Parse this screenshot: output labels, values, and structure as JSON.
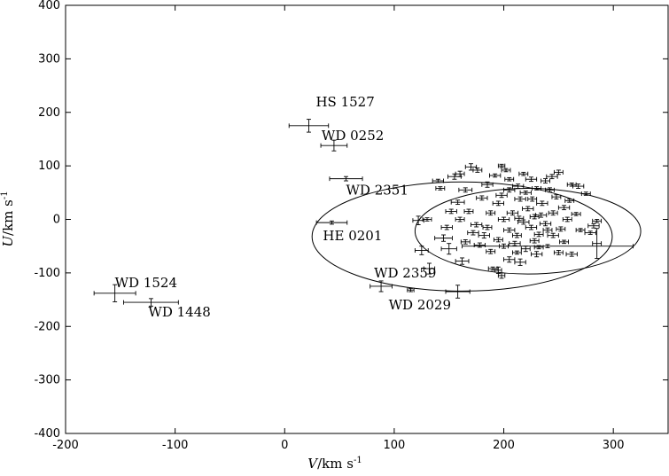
{
  "chart_data": {
    "type": "scatter",
    "xlabel": {
      "italic": "V",
      "unit": "/km s",
      "exp": "-1"
    },
    "ylabel": {
      "italic": "U",
      "unit": "/km s",
      "exp": "-1"
    },
    "xlim": [
      -200,
      350
    ],
    "ylim": [
      -400,
      400
    ],
    "x_ticks": [
      "-200",
      "-100",
      "0",
      "100",
      "200",
      "300"
    ],
    "y_ticks": [
      "-400",
      "-300",
      "-200",
      "-100",
      "0",
      "100",
      "200",
      "300",
      "400"
    ],
    "grid": false,
    "ellipses": [
      {
        "center": [
          162,
          -32
        ],
        "semi_axes": [
          137,
          102
        ]
      },
      {
        "center": [
          222,
          -22
        ],
        "semi_axes": [
          103,
          80
        ]
      }
    ],
    "labeled_points": [
      {
        "name": "HS 1527",
        "v": 22,
        "u": 175,
        "v_err": 18,
        "u_err": 12
      },
      {
        "name": "WD 0252",
        "v": 45,
        "u": 138,
        "v_err": 12,
        "u_err": 10
      },
      {
        "name": "WD 2351",
        "v": 56,
        "u": 76,
        "v_err": 15,
        "u_err": 4
      },
      {
        "name": "HE 0201",
        "v": 43,
        "u": -6,
        "v_err": 14,
        "u_err": 3
      },
      {
        "name": "WD 2359",
        "v": 88,
        "u": -125,
        "v_err": 10,
        "u_err": 10
      },
      {
        "name": "WD 2029",
        "v": 158,
        "u": -135,
        "v_err": 11,
        "u_err": 12
      },
      {
        "name": "WD 1524",
        "v": -155,
        "u": -138,
        "v_err": 19,
        "u_err": 16
      },
      {
        "name": "WD 1448",
        "v": -122,
        "u": -155,
        "v_err": 25,
        "u_err": 7
      }
    ],
    "other_points": [
      {
        "v": 132,
        "u": -92,
        "v_err": 5,
        "u_err": 10
      },
      {
        "v": 125,
        "u": -58,
        "v_err": 6,
        "u_err": 8
      },
      {
        "v": 115,
        "u": -132,
        "v_err": 3,
        "u_err": 3
      },
      {
        "v": 122,
        "u": -2,
        "v_err": 5,
        "u_err": 8
      },
      {
        "v": 130,
        "u": 0,
        "v_err": 4,
        "u_err": 3
      },
      {
        "v": 145,
        "u": -35,
        "v_err": 8,
        "u_err": 6
      },
      {
        "v": 150,
        "u": -55,
        "v_err": 7,
        "u_err": 10
      },
      {
        "v": 162,
        "u": -78,
        "v_err": 6,
        "u_err": 6
      },
      {
        "v": 140,
        "u": 72,
        "v_err": 5,
        "u_err": 3
      },
      {
        "v": 142,
        "u": 58,
        "v_err": 4,
        "u_err": 3
      },
      {
        "v": 155,
        "u": 80,
        "v_err": 6,
        "u_err": 5
      },
      {
        "v": 160,
        "u": 85,
        "v_err": 4,
        "u_err": 5
      },
      {
        "v": 170,
        "u": 98,
        "v_err": 5,
        "u_err": 6
      },
      {
        "v": 176,
        "u": 92,
        "v_err": 4,
        "u_err": 4
      },
      {
        "v": 165,
        "u": 55,
        "v_err": 6,
        "u_err": 4
      },
      {
        "v": 158,
        "u": 32,
        "v_err": 6,
        "u_err": 4
      },
      {
        "v": 168,
        "u": 15,
        "v_err": 4,
        "u_err": 4
      },
      {
        "v": 175,
        "u": -10,
        "v_err": 5,
        "u_err": 4
      },
      {
        "v": 182,
        "u": -30,
        "v_err": 5,
        "u_err": 5
      },
      {
        "v": 178,
        "u": -48,
        "v_err": 5,
        "u_err": 4
      },
      {
        "v": 188,
        "u": -60,
        "v_err": 4,
        "u_err": 4
      },
      {
        "v": 195,
        "u": -95,
        "v_err": 3,
        "u_err": 6
      },
      {
        "v": 198,
        "u": -105,
        "v_err": 3,
        "u_err": 5
      },
      {
        "v": 190,
        "u": -92,
        "v_err": 4,
        "u_err": 3
      },
      {
        "v": 205,
        "u": -75,
        "v_err": 5,
        "u_err": 5
      },
      {
        "v": 215,
        "u": -80,
        "v_err": 5,
        "u_err": 6
      },
      {
        "v": 230,
        "u": -65,
        "v_err": 5,
        "u_err": 5
      },
      {
        "v": 250,
        "u": -62,
        "v_err": 4,
        "u_err": 4
      },
      {
        "v": 262,
        "u": -65,
        "v_err": 5,
        "u_err": 4
      },
      {
        "v": 240,
        "u": -50,
        "v_err": 78,
        "u_err": 3
      },
      {
        "v": 285,
        "u": -45,
        "v_err": 4,
        "u_err": 28
      },
      {
        "v": 282,
        "u": -12,
        "v_err": 5,
        "u_err": 4
      },
      {
        "v": 279,
        "u": -25,
        "v_err": 5,
        "u_err": 3
      },
      {
        "v": 285,
        "u": -3,
        "v_err": 4,
        "u_err": 3
      },
      {
        "v": 275,
        "u": 48,
        "v_err": 4,
        "u_err": 3
      },
      {
        "v": 268,
        "u": 62,
        "v_err": 5,
        "u_err": 4
      },
      {
        "v": 262,
        "u": 65,
        "v_err": 4,
        "u_err": 3
      },
      {
        "v": 250,
        "u": 88,
        "v_err": 4,
        "u_err": 4
      },
      {
        "v": 244,
        "u": 80,
        "v_err": 5,
        "u_err": 4
      },
      {
        "v": 238,
        "u": 72,
        "v_err": 4,
        "u_err": 4
      },
      {
        "v": 225,
        "u": 75,
        "v_err": 5,
        "u_err": 4
      },
      {
        "v": 213,
        "u": 62,
        "v_err": 5,
        "u_err": 4
      },
      {
        "v": 205,
        "u": 55,
        "v_err": 5,
        "u_err": 4
      },
      {
        "v": 198,
        "u": 100,
        "v_err": 3,
        "u_err": 3
      },
      {
        "v": 202,
        "u": 92,
        "v_err": 4,
        "u_err": 3
      },
      {
        "v": 192,
        "u": 82,
        "v_err": 5,
        "u_err": 3
      },
      {
        "v": 185,
        "u": 65,
        "v_err": 5,
        "u_err": 5
      },
      {
        "v": 180,
        "u": 40,
        "v_err": 5,
        "u_err": 4
      },
      {
        "v": 195,
        "u": 30,
        "v_err": 5,
        "u_err": 4
      },
      {
        "v": 188,
        "u": 12,
        "v_err": 4,
        "u_err": 4
      },
      {
        "v": 200,
        "u": 0,
        "v_err": 5,
        "u_err": 4
      },
      {
        "v": 205,
        "u": -20,
        "v_err": 5,
        "u_err": 4
      },
      {
        "v": 195,
        "u": -38,
        "v_err": 4,
        "u_err": 4
      },
      {
        "v": 210,
        "u": -45,
        "v_err": 5,
        "u_err": 4
      },
      {
        "v": 220,
        "u": -55,
        "v_err": 4,
        "u_err": 5
      },
      {
        "v": 215,
        "u": 38,
        "v_err": 5,
        "u_err": 4
      },
      {
        "v": 222,
        "u": 20,
        "v_err": 5,
        "u_err": 4
      },
      {
        "v": 228,
        "u": 5,
        "v_err": 4,
        "u_err": 4
      },
      {
        "v": 218,
        "u": -5,
        "v_err": 5,
        "u_err": 4
      },
      {
        "v": 225,
        "u": -15,
        "v_err": 5,
        "u_err": 4
      },
      {
        "v": 232,
        "u": -28,
        "v_err": 4,
        "u_err": 4
      },
      {
        "v": 238,
        "u": -8,
        "v_err": 5,
        "u_err": 4
      },
      {
        "v": 245,
        "u": 12,
        "v_err": 4,
        "u_err": 4
      },
      {
        "v": 235,
        "u": 30,
        "v_err": 5,
        "u_err": 4
      },
      {
        "v": 248,
        "u": 42,
        "v_err": 4,
        "u_err": 4
      },
      {
        "v": 255,
        "u": 22,
        "v_err": 5,
        "u_err": 4
      },
      {
        "v": 258,
        "u": 0,
        "v_err": 4,
        "u_err": 4
      },
      {
        "v": 252,
        "u": -18,
        "v_err": 4,
        "u_err": 4
      },
      {
        "v": 245,
        "u": -30,
        "v_err": 5,
        "u_err": 4
      },
      {
        "v": 228,
        "u": -40,
        "v_err": 4,
        "u_err": 4
      },
      {
        "v": 212,
        "u": -30,
        "v_err": 4,
        "u_err": 4
      },
      {
        "v": 220,
        "u": 50,
        "v_err": 5,
        "u_err": 3
      },
      {
        "v": 230,
        "u": 58,
        "v_err": 4,
        "u_err": 3
      },
      {
        "v": 242,
        "u": 55,
        "v_err": 4,
        "u_err": 4
      },
      {
        "v": 208,
        "u": 12,
        "v_err": 5,
        "u_err": 4
      },
      {
        "v": 214,
        "u": 2,
        "v_err": 4,
        "u_err": 4
      },
      {
        "v": 234,
        "u": 8,
        "v_err": 5,
        "u_err": 4
      },
      {
        "v": 240,
        "u": -20,
        "v_err": 4,
        "u_err": 4
      },
      {
        "v": 226,
        "u": 38,
        "v_err": 4,
        "u_err": 4
      },
      {
        "v": 198,
        "u": 45,
        "v_err": 5,
        "u_err": 4
      },
      {
        "v": 172,
        "u": -25,
        "v_err": 5,
        "u_err": 4
      },
      {
        "v": 165,
        "u": -42,
        "v_err": 4,
        "u_err": 4
      },
      {
        "v": 160,
        "u": 0,
        "v_err": 4,
        "u_err": 4
      },
      {
        "v": 152,
        "u": 15,
        "v_err": 5,
        "u_err": 4
      },
      {
        "v": 148,
        "u": -15,
        "v_err": 5,
        "u_err": 4
      },
      {
        "v": 260,
        "u": 35,
        "v_err": 4,
        "u_err": 3
      },
      {
        "v": 266,
        "u": 10,
        "v_err": 4,
        "u_err": 3
      },
      {
        "v": 270,
        "u": -20,
        "v_err": 4,
        "u_err": 3
      },
      {
        "v": 255,
        "u": -42,
        "v_err": 4,
        "u_err": 3
      },
      {
        "v": 212,
        "u": -62,
        "v_err": 4,
        "u_err": 3
      },
      {
        "v": 200,
        "u": -50,
        "v_err": 4,
        "u_err": 4
      },
      {
        "v": 185,
        "u": -15,
        "v_err": 4,
        "u_err": 4
      },
      {
        "v": 232,
        "u": -52,
        "v_err": 4,
        "u_err": 3
      },
      {
        "v": 205,
        "u": 75,
        "v_err": 4,
        "u_err": 3
      },
      {
        "v": 218,
        "u": 85,
        "v_err": 4,
        "u_err": 3
      }
    ]
  }
}
